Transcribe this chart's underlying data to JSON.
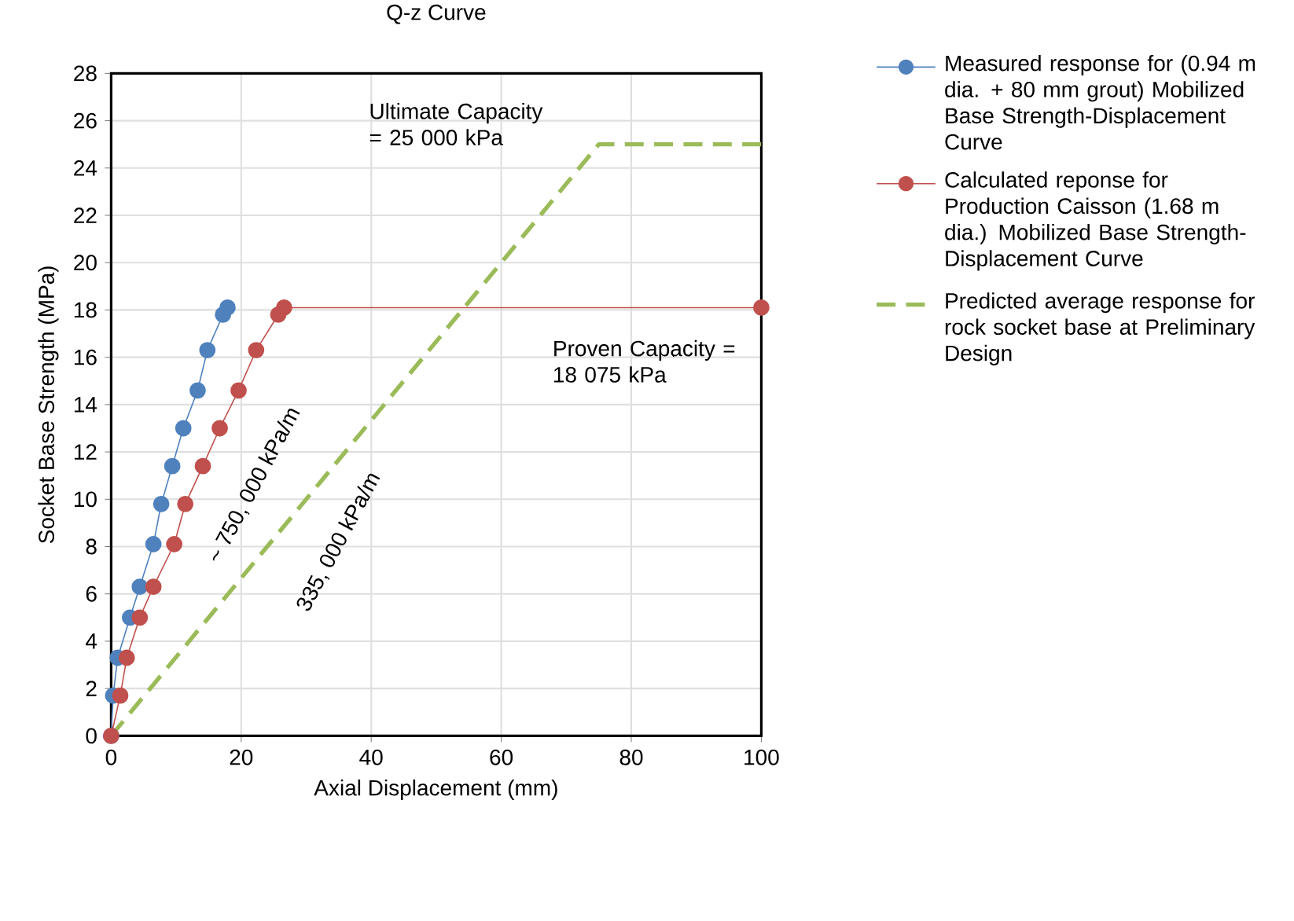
{
  "chart_data": {
    "type": "line",
    "title": "Q-z Curve",
    "xlabel": "Axial Displacement (mm)",
    "ylabel": "Socket Base Strength (MPa)",
    "xlim": [
      0,
      100
    ],
    "ylim": [
      0,
      28
    ],
    "xticks": [
      0,
      20,
      40,
      60,
      80,
      100
    ],
    "yticks": [
      0,
      2,
      4,
      6,
      8,
      10,
      12,
      14,
      16,
      18,
      20,
      22,
      24,
      26,
      28
    ],
    "grid": true,
    "legend": "right",
    "series": [
      {
        "name": "Measured response for (0.94 m dia. + 80 mm grout) Mobilized Base Strength-Displacement Curve",
        "color": "#4f81bd",
        "marker": "circle",
        "line_style": "solid",
        "x": [
          0,
          0.3,
          1.0,
          2.9,
          4.4,
          6.5,
          7.7,
          9.4,
          11.1,
          13.3,
          14.8,
          17.2,
          17.9
        ],
        "values": [
          0,
          1.7,
          3.3,
          5.0,
          6.3,
          8.1,
          9.8,
          11.4,
          13.0,
          14.6,
          16.3,
          17.8,
          18.1
        ]
      },
      {
        "name": "Calculated reponse for Production Caisson (1.68 m dia.) Mobilized Base Strength-Displacement Curve",
        "color": "#c0504d",
        "marker": "circle",
        "line_style": "solid",
        "x": [
          0,
          1.4,
          2.4,
          4.4,
          6.5,
          9.7,
          11.4,
          14.1,
          16.7,
          19.6,
          22.3,
          25.7,
          26.6,
          100
        ],
        "values": [
          0,
          1.7,
          3.3,
          5.0,
          6.3,
          8.1,
          9.8,
          11.4,
          13.0,
          14.6,
          16.3,
          17.8,
          18.1,
          18.1
        ]
      },
      {
        "name": "Predicted average response for rock socket base at Preliminary Design",
        "color": "#9bbb59",
        "marker": "none",
        "line_style": "dashed",
        "x": [
          0,
          75,
          100
        ],
        "values": [
          0,
          25,
          25
        ]
      }
    ],
    "annotations": [
      {
        "text": "Ultimate Capacity = 25 000 kPa",
        "x": 75,
        "y": 25
      },
      {
        "text": "Proven Capacity = 18 075 kPa",
        "x": 100,
        "y": 18.1
      },
      "~ 750, 000 kPa/m",
      "335, 000 kPa/m"
    ]
  }
}
